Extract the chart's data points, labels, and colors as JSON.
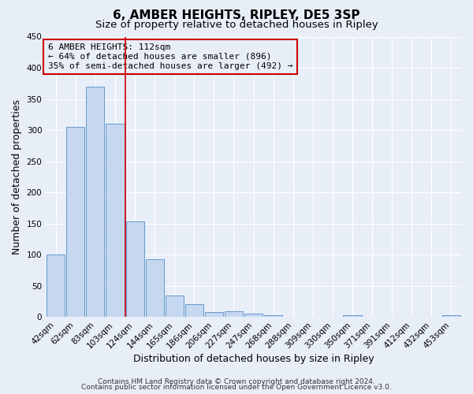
{
  "title": "6, AMBER HEIGHTS, RIPLEY, DE5 3SP",
  "subtitle": "Size of property relative to detached houses in Ripley",
  "xlabel": "Distribution of detached houses by size in Ripley",
  "ylabel": "Number of detached properties",
  "bin_labels": [
    "42sqm",
    "62sqm",
    "83sqm",
    "103sqm",
    "124sqm",
    "144sqm",
    "165sqm",
    "186sqm",
    "206sqm",
    "227sqm",
    "247sqm",
    "268sqm",
    "288sqm",
    "309sqm",
    "330sqm",
    "350sqm",
    "371sqm",
    "391sqm",
    "412sqm",
    "432sqm",
    "453sqm"
  ],
  "bar_values": [
    100,
    305,
    370,
    310,
    153,
    92,
    35,
    20,
    8,
    9,
    5,
    3,
    0,
    0,
    0,
    3,
    0,
    0,
    0,
    0,
    3
  ],
  "bar_color": "#c5d8f0",
  "bar_edge_color": "#6699cc",
  "vline_x_index": 3.5,
  "vline_color": "#cc0000",
  "ylim": [
    0,
    450
  ],
  "yticks": [
    0,
    50,
    100,
    150,
    200,
    250,
    300,
    350,
    400,
    450
  ],
  "annotation_title": "6 AMBER HEIGHTS: 112sqm",
  "annotation_line1": "← 64% of detached houses are smaller (896)",
  "annotation_line2": "35% of semi-detached houses are larger (492) →",
  "annotation_box_color": "#cc0000",
  "footer1": "Contains HM Land Registry data © Crown copyright and database right 2024.",
  "footer2": "Contains public sector information licensed under the Open Government Licence v3.0.",
  "bg_color": "#e8eef8",
  "grid_color": "#ffffff",
  "title_fontsize": 11,
  "subtitle_fontsize": 9.5,
  "axis_label_fontsize": 9,
  "tick_fontsize": 7.5,
  "footer_fontsize": 6.5
}
